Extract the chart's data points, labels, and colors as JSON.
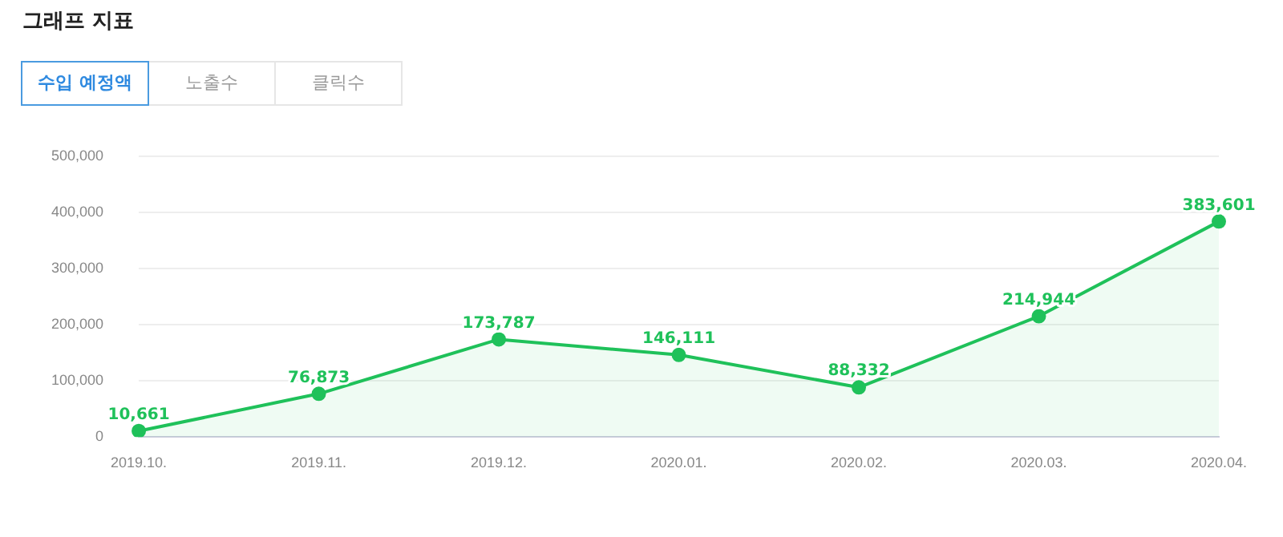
{
  "chart_data": {
    "type": "area",
    "title": "그래프 지표",
    "annotations": [
      "수입 예정액",
      "노출수",
      "클릭수"
    ],
    "categories": [
      "2019.10.",
      "2019.11.",
      "2019.12.",
      "2020.01.",
      "2020.02.",
      "2020.03.",
      "2020.04."
    ],
    "series": [
      {
        "color": "#1fc15a",
        "values": [
          10661,
          76873,
          173787,
          146111,
          88332,
          214944,
          383601
        ],
        "value_labels": [
          "10,661",
          "76,873",
          "173,787",
          "146,111",
          "88,332",
          "214,944",
          "383,601"
        ]
      }
    ],
    "ylim": [
      0,
      500000
    ],
    "yticks": [
      {
        "value": 0,
        "label": "0"
      },
      {
        "value": 100000,
        "label": "100,000"
      },
      {
        "value": 200000,
        "label": "200,000"
      },
      {
        "value": 300000,
        "label": "300,000"
      },
      {
        "value": 400000,
        "label": "400,000"
      },
      {
        "value": 500000,
        "label": "500,000"
      }
    ],
    "grid": "y",
    "marker": "circle",
    "line_style": "solid",
    "legend": false
  }
}
